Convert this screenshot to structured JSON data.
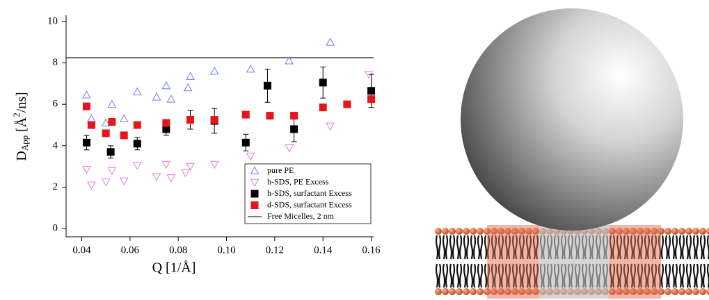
{
  "chart_data": {
    "type": "scatter",
    "x_label": "Q [1/Å]",
    "y_label": [
      "D",
      "App",
      " [Å",
      "2",
      "/ns]"
    ],
    "xlim": [
      0.0335,
      0.161
    ],
    "ylim": [
      -0.4,
      10.3
    ],
    "xticks": [
      0.04,
      0.06,
      0.08,
      {
        "value": 0.1,
        "label": "0.10"
      },
      0.12,
      0.14,
      0.16
    ],
    "yticks": [
      0,
      2,
      4,
      6,
      8,
      10
    ],
    "legend": "bottom-right",
    "series": [
      {
        "name": "pure PE",
        "color": "#6f7fe0",
        "marker": "triangle-up",
        "x": [
          0.042,
          0.044,
          0.05,
          0.0525,
          0.0575,
          0.063,
          0.071,
          0.075,
          0.077,
          0.084,
          0.085,
          0.095,
          0.11,
          0.126,
          0.143
        ],
        "values": [
          6.45,
          5.3,
          5.1,
          6.0,
          5.3,
          6.6,
          6.35,
          6.9,
          6.25,
          6.8,
          7.35,
          7.6,
          7.7,
          8.1,
          9.0
        ]
      },
      {
        "name": "h-SDS, PE Excess",
        "color": "#e07be0",
        "marker": "triangle-down",
        "x": [
          0.042,
          0.044,
          0.05,
          0.0525,
          0.0575,
          0.063,
          0.071,
          0.075,
          0.077,
          0.083,
          0.085,
          0.095,
          0.11,
          0.126,
          0.143,
          0.159
        ],
        "values": [
          2.85,
          2.1,
          2.25,
          2.8,
          2.3,
          3.05,
          2.5,
          3.1,
          2.45,
          2.7,
          3.0,
          3.1,
          3.5,
          3.9,
          4.95,
          7.45
        ]
      },
      {
        "name": "h-SDS, surfactant Excess",
        "color": "#000000",
        "marker": "square",
        "x": [
          0.042,
          0.052,
          0.063,
          0.075,
          0.085,
          0.095,
          0.108,
          0.117,
          0.128,
          0.14,
          0.16
        ],
        "values": [
          4.15,
          3.7,
          4.1,
          4.8,
          5.25,
          5.2,
          4.15,
          6.9,
          4.8,
          7.05,
          6.65
        ],
        "errors": [
          0.35,
          0.3,
          0.3,
          0.3,
          0.45,
          0.6,
          0.4,
          0.8,
          0.6,
          0.75,
          0.8
        ]
      },
      {
        "name": "d-SDS, surfactant Excess",
        "color": "#e8141a",
        "marker": "square",
        "x": [
          0.042,
          0.044,
          0.05,
          0.0525,
          0.0575,
          0.063,
          0.075,
          0.085,
          0.095,
          0.108,
          0.118,
          0.128,
          0.14,
          0.15,
          0.16
        ],
        "values": [
          5.9,
          5.0,
          4.6,
          5.15,
          4.5,
          5.0,
          5.1,
          5.25,
          5.25,
          5.5,
          5.45,
          5.45,
          5.85,
          6.0,
          6.25
        ]
      }
    ],
    "hline": {
      "name": "Free Micelles, 2 nm",
      "value": 8.25,
      "color": "#000000"
    }
  }
}
